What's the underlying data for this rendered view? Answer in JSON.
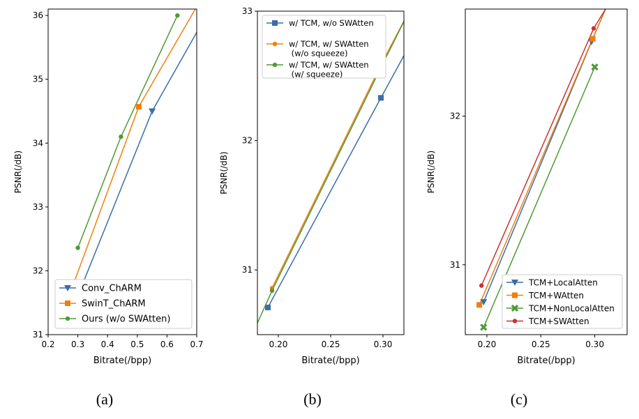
{
  "chart_data": [
    {
      "type": "line",
      "caption": "(a)",
      "xlabel": "Bitrate(/bpp)",
      "ylabel": "PSNR(/dB)",
      "xlim": [
        0.2,
        0.7
      ],
      "ylim": [
        31,
        36.1
      ],
      "xticks": [
        0.2,
        0.3,
        0.4,
        0.5,
        0.6,
        0.7
      ],
      "xtick_labels": [
        "0.2",
        "0.3",
        "0.4",
        "0.5",
        "0.6",
        "0.7"
      ],
      "yticks": [
        31,
        32,
        33,
        34,
        35,
        36
      ],
      "ytick_labels": [
        "31",
        "32",
        "33",
        "34",
        "35",
        "36"
      ],
      "legend_position": "lower-right",
      "series": [
        {
          "name": "Conv_ChARM",
          "color": "#3a6ea5",
          "marker": "triangle-down",
          "x": [
            0.295,
            0.55,
            0.72
          ],
          "y": [
            31.55,
            34.5,
            35.9
          ],
          "marker_count": 2
        },
        {
          "name": "SwinT_ChARM",
          "color": "#f07f0e",
          "marker": "square",
          "x": [
            0.27,
            0.505,
            0.72
          ],
          "y": [
            31.6,
            34.57,
            36.3
          ],
          "marker_count": 2
        },
        {
          "name": "Ours (w/o SWAtten)",
          "color": "#4e9a36",
          "marker": "dot",
          "x": [
            0.3,
            0.445,
            0.635
          ],
          "y": [
            32.36,
            34.1,
            36.0
          ],
          "marker_count": 3
        }
      ]
    },
    {
      "type": "line",
      "caption": "(b)",
      "xlabel": "Bitrate(/bpp)",
      "ylabel": "PSNR(/dB)",
      "xlim": [
        0.18,
        0.32
      ],
      "ylim": [
        30.5,
        33.0
      ],
      "xticks": [
        0.2,
        0.25,
        0.3
      ],
      "xtick_labels": [
        "0.20",
        "0.25",
        "0.30"
      ],
      "yticks": [
        31,
        32,
        33
      ],
      "ytick_labels": [
        "31",
        "32",
        "33"
      ],
      "legend_position": "upper-left",
      "series": [
        {
          "name": "w/ TCM, w/o SWAtten",
          "color": "#3a6ea5",
          "marker": "square",
          "x": [
            0.19,
            0.298,
            0.325
          ],
          "y": [
            30.71,
            32.33,
            32.73
          ],
          "marker_count": 2
        },
        {
          "name": "w/ TCM, w/ SWAtten\n (w/o squeeze)",
          "color": "#f07f0e",
          "marker": "dot",
          "x": [
            0.194,
            0.299,
            0.325
          ],
          "y": [
            30.86,
            32.6,
            33.0
          ],
          "marker_count": 2
        },
        {
          "name": "w/ TCM, w/ SWAtten\n (w/ squeeze)",
          "color": "#4e9a36",
          "marker": "dot",
          "x": [
            0.175,
            0.194,
            0.299,
            0.325
          ],
          "y": [
            30.5,
            30.84,
            32.58,
            33.0
          ],
          "marker_count": 2
        }
      ]
    },
    {
      "type": "line",
      "caption": "(c)",
      "xlabel": "Bitrate(/bpp)",
      "ylabel": "PSNR(/dB)",
      "xlim": [
        0.18,
        0.33
      ],
      "ylim": [
        30.53,
        32.72
      ],
      "xticks": [
        0.2,
        0.25,
        0.3
      ],
      "xtick_labels": [
        "0.20",
        "0.25",
        "0.30"
      ],
      "yticks": [
        31,
        32
      ],
      "ytick_labels": [
        "31",
        "32"
      ],
      "legend_position": "lower-right",
      "series": [
        {
          "name": "TCM+LocalAtten",
          "color": "#3a6ea5",
          "marker": "triangle-down",
          "x": [
            0.197,
            0.297,
            0.31
          ],
          "y": [
            30.75,
            32.5,
            32.72
          ],
          "marker_count": 2
        },
        {
          "name": "TCM+WAtten",
          "color": "#f07f0e",
          "marker": "square",
          "x": [
            0.193,
            0.298,
            0.31
          ],
          "y": [
            30.73,
            32.52,
            32.72
          ],
          "marker_count": 2
        },
        {
          "name": "TCM+NonLocalAtten",
          "color": "#4e9a36",
          "marker": "x",
          "x": [
            0.197,
            0.3
          ],
          "y": [
            30.58,
            32.33
          ],
          "marker_count": 2
        },
        {
          "name": "TCM+SWAtten",
          "color": "#c93232",
          "marker": "dot",
          "x": [
            0.195,
            0.299,
            0.31
          ],
          "y": [
            30.86,
            32.59,
            32.72
          ],
          "marker_count": 2
        }
      ]
    }
  ]
}
